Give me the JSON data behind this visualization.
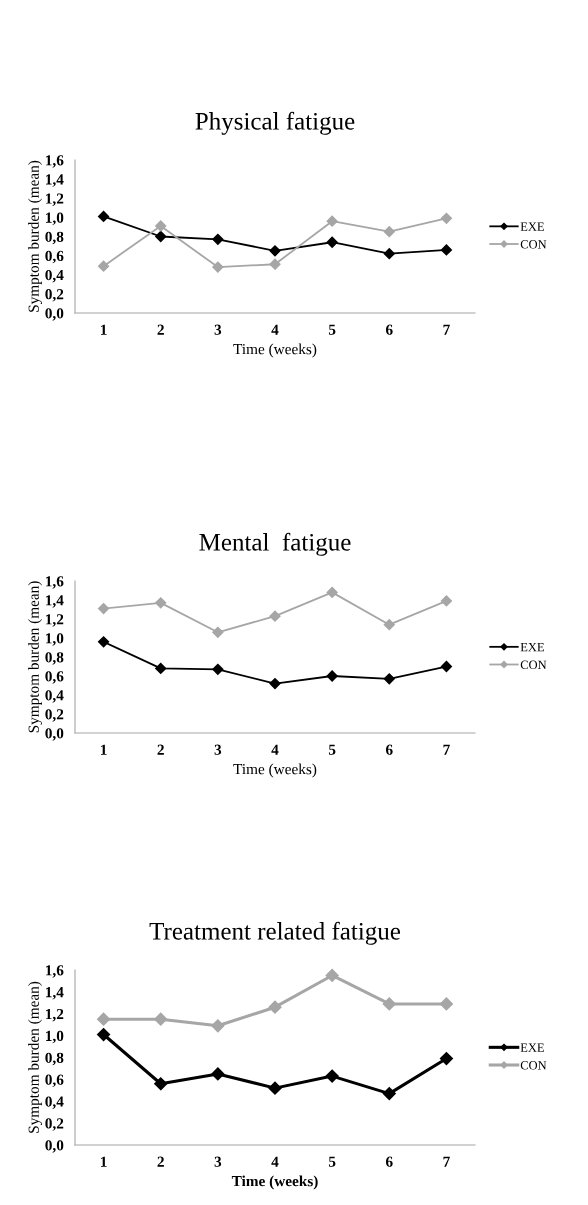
{
  "chart_data": [
    {
      "type": "line",
      "title": "Physical fatigue",
      "xlabel": "Time (weeks)",
      "ylabel": "Symptom burden (mean)",
      "categories": [
        "1",
        "2",
        "3",
        "4",
        "5",
        "6",
        "7"
      ],
      "ylim": [
        0,
        1.6
      ],
      "yticks": [
        {
          "value": 0,
          "label": "0,0"
        },
        {
          "value": 0.2,
          "label": "0,2"
        },
        {
          "value": 0.4,
          "label": "0,4"
        },
        {
          "value": 0.6,
          "label": "0,6"
        },
        {
          "value": 0.8,
          "label": "0,8"
        },
        {
          "value": 1.0,
          "label": "1,0"
        },
        {
          "value": 1.2,
          "label": "1,2"
        },
        {
          "value": 1.4,
          "label": "1,4"
        },
        {
          "value": 1.6,
          "label": "1,6"
        }
      ],
      "marker": "diamond",
      "grid": false,
      "legend": "right",
      "series": [
        {
          "name": "EXE",
          "color": "#000000",
          "values": [
            1.01,
            0.8,
            0.77,
            0.65,
            0.74,
            0.62,
            0.66
          ]
        },
        {
          "name": "CON",
          "color": "#a6a6a6",
          "values": [
            0.49,
            0.91,
            0.48,
            0.51,
            0.96,
            0.85,
            0.99
          ]
        }
      ]
    },
    {
      "type": "line",
      "title": "Mental  fatigue",
      "xlabel": "Time (weeks)",
      "ylabel": "Symptom burden (mean)",
      "categories": [
        "1",
        "2",
        "3",
        "4",
        "5",
        "6",
        "7"
      ],
      "ylim": [
        0,
        1.6
      ],
      "yticks": [
        {
          "value": 0,
          "label": "0,0"
        },
        {
          "value": 0.2,
          "label": "0,2"
        },
        {
          "value": 0.4,
          "label": "0,4"
        },
        {
          "value": 0.6,
          "label": "0,6"
        },
        {
          "value": 0.8,
          "label": "0,8"
        },
        {
          "value": 1.0,
          "label": "1,0"
        },
        {
          "value": 1.2,
          "label": "1,2"
        },
        {
          "value": 1.4,
          "label": "1,4"
        },
        {
          "value": 1.6,
          "label": "1,6"
        }
      ],
      "marker": "diamond",
      "grid": false,
      "legend": "right",
      "series": [
        {
          "name": "EXE",
          "color": "#000000",
          "values": [
            0.96,
            0.68,
            0.67,
            0.52,
            0.6,
            0.57,
            0.7
          ]
        },
        {
          "name": "CON",
          "color": "#a6a6a6",
          "values": [
            1.31,
            1.37,
            1.06,
            1.23,
            1.48,
            1.14,
            1.39
          ]
        }
      ]
    },
    {
      "type": "line",
      "title": "Treatment related fatigue",
      "xlabel": "Time (weeks)",
      "ylabel": "Symptom burden (mean)",
      "categories": [
        "1",
        "2",
        "3",
        "4",
        "5",
        "6",
        "7"
      ],
      "ylim": [
        0,
        1.6
      ],
      "yticks": [
        {
          "value": 0,
          "label": "0,0"
        },
        {
          "value": 0.2,
          "label": "0,2"
        },
        {
          "value": 0.4,
          "label": "0,4"
        },
        {
          "value": 0.6,
          "label": "0,6"
        },
        {
          "value": 0.8,
          "label": "0,8"
        },
        {
          "value": 1.0,
          "label": "1,0"
        },
        {
          "value": 1.2,
          "label": "1,2"
        },
        {
          "value": 1.4,
          "label": "1,4"
        },
        {
          "value": 1.6,
          "label": "1,6"
        }
      ],
      "marker": "diamond",
      "grid": false,
      "legend": "right",
      "series": [
        {
          "name": "EXE",
          "color": "#000000",
          "values": [
            1.01,
            0.56,
            0.65,
            0.52,
            0.63,
            0.47,
            0.79
          ]
        },
        {
          "name": "CON",
          "color": "#a6a6a6",
          "values": [
            1.15,
            1.15,
            1.09,
            1.26,
            1.55,
            1.29,
            1.29
          ]
        }
      ]
    }
  ]
}
